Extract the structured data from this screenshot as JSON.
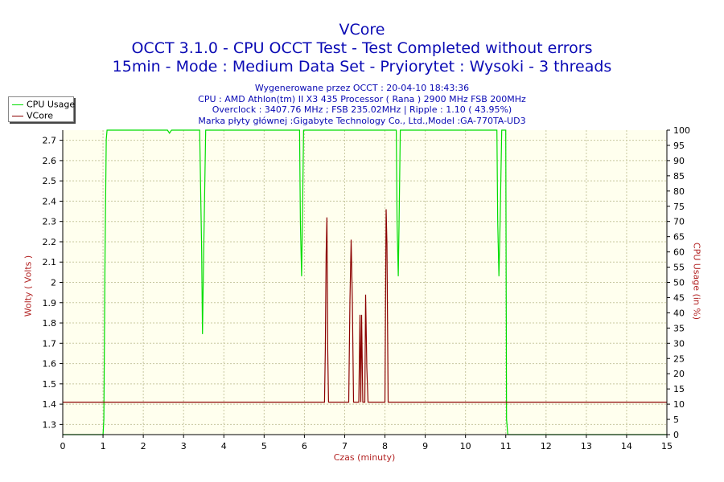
{
  "header": {
    "title": "VCore",
    "subtitle1": "OCCT 3.1.0 - CPU OCCT Test - Test Completed without errors",
    "subtitle2": "15min - Mode : Medium Data Set - Pryiorytet : Wysoki - 3 threads"
  },
  "info": {
    "line1": "Wygenerowane przez OCCT : 20-04-10 18:43:36",
    "line2": "CPU : AMD Athlon(tm) II X3 435 Processor ( Rana ) 2900 MHz FSB 200MHz",
    "line3": "Overclock : 3407.76 MHz ; FSB 235.02MHz | Ripple : 1.10 ( 43.95%)",
    "line4": "Marka płyty głównej :Gigabyte Technology Co., Ltd.,Model :GA-770TA-UD3"
  },
  "legend": {
    "items": [
      {
        "label": "CPU Usage",
        "color": "#00dd00"
      },
      {
        "label": "VCore",
        "color": "#8b0000"
      }
    ]
  },
  "colors": {
    "plot_background": "#ffffee",
    "grid": "#c8c8a0",
    "cpu_line": "#00dd00",
    "vcore_line": "#8b0000",
    "title_text": "#0a0ab4",
    "axis_label_text": "#b22222"
  },
  "chart_data": {
    "type": "line",
    "title": "VCore",
    "xlabel": "Czas (minuty)",
    "ylabel_left": "Wolty ( Volts )",
    "ylabel_right": "CPU Usage (in %)",
    "xlim": [
      0,
      15
    ],
    "ylim_left": [
      1.25,
      2.75
    ],
    "ylim_right": [
      0,
      100
    ],
    "x_ticks": [
      0,
      1,
      2,
      3,
      4,
      5,
      6,
      7,
      8,
      9,
      10,
      11,
      12,
      13,
      14,
      15
    ],
    "y_left_ticks": [
      1.3,
      1.4,
      1.5,
      1.6,
      1.7,
      1.8,
      1.9,
      2,
      2.1,
      2.2,
      2.3,
      2.4,
      2.5,
      2.6,
      2.7
    ],
    "y_left_tick_labels": [
      "1.3",
      "1.4",
      "1.5",
      "1.6",
      "1.7",
      "1.8",
      "1.9",
      "2",
      "2.1",
      "2.2",
      "2.3",
      "2.4",
      "2.5",
      "2.6",
      "2.7"
    ],
    "y_right_ticks": [
      0,
      5,
      10,
      15,
      20,
      25,
      30,
      35,
      40,
      45,
      50,
      55,
      60,
      65,
      70,
      75,
      80,
      85,
      90,
      95,
      100
    ],
    "grid": true,
    "legend_position": "top-left",
    "series": [
      {
        "name": "CPU Usage",
        "axis": "right",
        "color": "#00dd00",
        "x": [
          0,
          1.0,
          1.02,
          1.05,
          1.08,
          1.1,
          2.6,
          2.65,
          2.7,
          3.4,
          3.45,
          3.47,
          3.5,
          3.55,
          5.88,
          5.9,
          5.93,
          5.95,
          5.98,
          6.0,
          8.28,
          8.3,
          8.33,
          8.35,
          8.38,
          8.4,
          10.78,
          10.8,
          10.83,
          10.86,
          10.9,
          11.0,
          11.02,
          11.05,
          15
        ],
        "y": [
          0,
          0,
          5,
          60,
          97,
          100,
          100,
          99,
          100,
          100,
          60,
          33,
          60,
          100,
          100,
          70,
          52,
          70,
          100,
          100,
          100,
          70,
          52,
          70,
          100,
          100,
          100,
          70,
          52,
          70,
          100,
          100,
          5,
          0,
          0
        ]
      },
      {
        "name": "VCore",
        "axis": "left",
        "color": "#8b0000",
        "x": [
          0,
          6.5,
          6.52,
          6.54,
          6.56,
          6.58,
          6.6,
          6.62,
          7.1,
          7.13,
          7.16,
          7.19,
          7.22,
          7.35,
          7.38,
          7.4,
          7.42,
          7.45,
          7.5,
          7.52,
          7.55,
          7.58,
          7.6,
          8.0,
          8.03,
          8.05,
          8.08,
          8.1,
          8.12,
          15
        ],
        "y": [
          1.41,
          1.41,
          1.67,
          2.14,
          2.32,
          1.67,
          1.41,
          1.41,
          1.41,
          1.91,
          2.21,
          1.91,
          1.41,
          1.41,
          1.84,
          1.41,
          1.84,
          1.41,
          1.41,
          1.94,
          1.58,
          1.41,
          1.41,
          1.41,
          2.36,
          2.19,
          1.41,
          1.41,
          1.41,
          1.41
        ]
      }
    ]
  }
}
